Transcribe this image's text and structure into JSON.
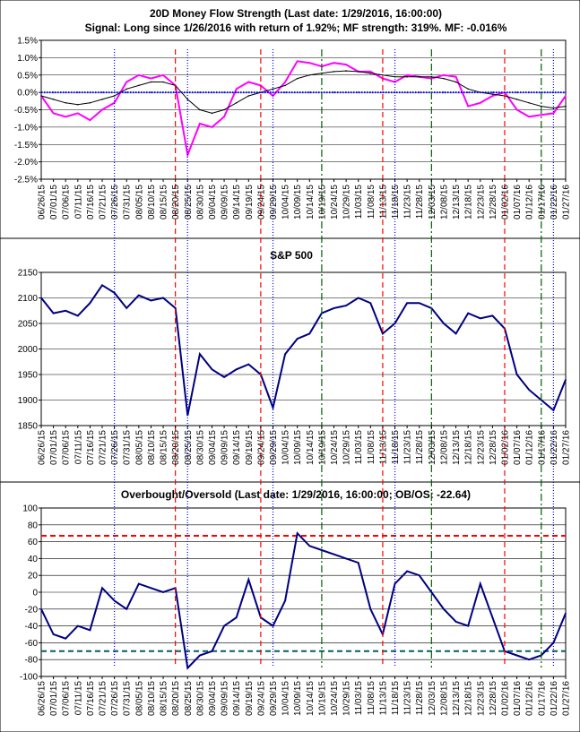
{
  "chart_data": [
    {
      "type": "line",
      "title": "20D Money Flow Strength (Last date: 1/29/2016, 16:00:00)",
      "subtitle": "Signal: Long since 1/26/2016 with return of 1.92%; MF strength: 319%. MF: -0.016%",
      "ylim": [
        -2.5,
        1.5
      ],
      "yticks": [
        "1.5%",
        "1.0%",
        "0.5%",
        "0.0%",
        "-0.5%",
        "-1.0%",
        "-1.5%",
        "-2.0%",
        "-2.5%"
      ],
      "grid": true,
      "x": [
        "06/26/15",
        "07/01/15",
        "07/06/15",
        "07/11/15",
        "07/16/15",
        "07/21/15",
        "07/26/15",
        "07/31/15",
        "08/05/15",
        "08/10/15",
        "08/15/15",
        "08/20/15",
        "08/25/15",
        "08/30/15",
        "09/04/15",
        "09/09/15",
        "09/14/15",
        "09/19/15",
        "09/24/15",
        "09/29/15",
        "10/04/15",
        "10/09/15",
        "10/14/15",
        "10/19/15",
        "10/24/15",
        "10/29/15",
        "11/03/15",
        "11/08/15",
        "11/13/15",
        "11/18/15",
        "11/23/15",
        "11/28/15",
        "12/03/15",
        "12/08/15",
        "12/13/15",
        "12/18/15",
        "12/23/15",
        "12/28/15",
        "01/02/16",
        "01/07/16",
        "01/12/16",
        "01/17/16",
        "01/22/16",
        "01/27/16"
      ],
      "series": [
        {
          "color": "#FF00FF",
          "values": [
            -0.1,
            -0.6,
            -0.7,
            -0.6,
            -0.8,
            -0.5,
            -0.3,
            0.3,
            0.5,
            0.4,
            0.5,
            0.2,
            -1.8,
            -0.9,
            -1.0,
            -0.7,
            0.1,
            0.3,
            0.2,
            -0.1,
            0.3,
            0.9,
            0.85,
            0.75,
            0.85,
            0.8,
            0.6,
            0.6,
            0.4,
            0.3,
            0.5,
            0.45,
            0.4,
            0.5,
            0.45,
            -0.4,
            -0.3,
            -0.1,
            0.0,
            -0.5,
            -0.7,
            -0.65,
            -0.6,
            -0.1
          ]
        },
        {
          "color": "#000000",
          "values": [
            -0.1,
            -0.2,
            -0.3,
            -0.35,
            -0.3,
            -0.2,
            -0.1,
            0.1,
            0.2,
            0.3,
            0.3,
            0.2,
            -0.2,
            -0.5,
            -0.6,
            -0.5,
            -0.3,
            -0.1,
            0.0,
            0.1,
            0.2,
            0.4,
            0.5,
            0.55,
            0.6,
            0.62,
            0.6,
            0.55,
            0.5,
            0.45,
            0.45,
            0.45,
            0.45,
            0.4,
            0.3,
            0.1,
            0.0,
            -0.05,
            -0.1,
            -0.2,
            -0.3,
            -0.4,
            -0.45,
            -0.4
          ]
        },
        {
          "color": "#0000FF",
          "values": [
            0,
            0,
            0,
            0,
            0,
            0,
            0,
            0,
            0,
            0,
            0,
            0,
            0,
            0,
            0,
            0,
            0,
            0,
            0,
            0,
            0,
            0,
            0,
            0,
            0,
            0,
            0,
            0,
            0,
            0,
            0,
            0,
            0,
            0,
            0,
            0,
            0,
            0,
            0,
            0,
            0,
            0,
            0,
            0
          ]
        }
      ]
    },
    {
      "type": "line",
      "title": "S&P 500",
      "ylim": [
        1850,
        2150
      ],
      "yticks": [
        "2150",
        "2100",
        "2050",
        "2000",
        "1950",
        "1900",
        "1850"
      ],
      "grid": true,
      "series": [
        {
          "color": "#000080",
          "values": [
            2100,
            2070,
            2075,
            2065,
            2090,
            2125,
            2110,
            2080,
            2105,
            2095,
            2100,
            2080,
            1870,
            1990,
            1960,
            1945,
            1960,
            1970,
            1950,
            1885,
            1990,
            2020,
            2030,
            2070,
            2080,
            2085,
            2100,
            2090,
            2030,
            2050,
            2090,
            2090,
            2080,
            2050,
            2030,
            2070,
            2060,
            2065,
            2040,
            1950,
            1920,
            1900,
            1880,
            1940
          ]
        }
      ]
    },
    {
      "type": "line",
      "title": "Overbought/Oversold (Last date: 1/29/2016, 16:00:00; OB/OS: -22.64)",
      "ylim": [
        -100,
        100
      ],
      "yticks": [
        "100",
        "80",
        "60",
        "40",
        "20",
        "0",
        "-20",
        "-40",
        "-60",
        "-80",
        "-100"
      ],
      "grid": true,
      "series": [
        {
          "color": "#000080",
          "values": [
            -20,
            -50,
            -55,
            -40,
            -45,
            5,
            -10,
            -20,
            10,
            5,
            0,
            5,
            -90,
            -75,
            -70,
            -40,
            -30,
            15,
            -30,
            -40,
            -10,
            70,
            55,
            50,
            45,
            40,
            35,
            -20,
            -50,
            10,
            25,
            20,
            0,
            -20,
            -35,
            -40,
            10,
            -30,
            -70,
            -75,
            -80,
            -75,
            -60,
            -25
          ]
        }
      ],
      "reference_lines": [
        {
          "value": 67,
          "color": "#FF0000",
          "style": "dashed"
        },
        {
          "value": -70,
          "color": "#006060",
          "style": "dashed"
        }
      ]
    }
  ],
  "signal_lines": [
    {
      "date": "07/26/15",
      "color": "#0000FF",
      "style": "dotted"
    },
    {
      "date": "08/20/15",
      "color": "#FF0000",
      "style": "dashed"
    },
    {
      "date": "08/25/15",
      "color": "#0000FF",
      "style": "dotted"
    },
    {
      "date": "09/24/15",
      "color": "#FF0000",
      "style": "dashed"
    },
    {
      "date": "09/29/15",
      "color": "#0000FF",
      "style": "dotted"
    },
    {
      "date": "10/19/15",
      "color": "#006000",
      "style": "dashdot"
    },
    {
      "date": "11/13/15",
      "color": "#FF0000",
      "style": "dashed"
    },
    {
      "date": "11/18/15",
      "color": "#0000FF",
      "style": "dotted"
    },
    {
      "date": "12/03/15",
      "color": "#006000",
      "style": "dashdot"
    },
    {
      "date": "01/02/16",
      "color": "#FF0000",
      "style": "dashed"
    },
    {
      "date": "01/17/16",
      "color": "#006000",
      "style": "dashdot"
    },
    {
      "date": "01/22/16",
      "color": "#0000FF",
      "style": "dotted"
    }
  ]
}
